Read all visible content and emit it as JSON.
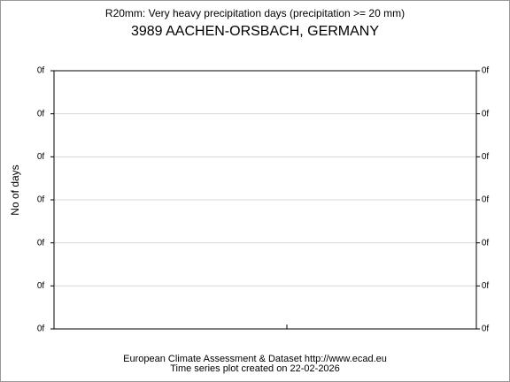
{
  "chart_data": {
    "type": "line",
    "title": "R20mm: Very heavy precipitation days (precipitation >= 20 mm)",
    "subtitle": "3989 AACHEN-ORSBACH, GERMANY",
    "ylabel": "No of days",
    "ylim": [
      0,
      6
    ],
    "yticks": [
      {
        "value": 0,
        "label": "0f"
      },
      {
        "value": 1,
        "label": "0f"
      },
      {
        "value": 2,
        "label": "0f"
      },
      {
        "value": 3,
        "label": "0f"
      },
      {
        "value": 4,
        "label": "0f"
      },
      {
        "value": 5,
        "label": "0f"
      },
      {
        "value": 6,
        "label": "0f"
      }
    ],
    "grid": true,
    "footer": [
      "European Climate Assessment & Dataset  http://www.ecad.eu",
      "Time series plot created on 22-02-2026"
    ]
  }
}
